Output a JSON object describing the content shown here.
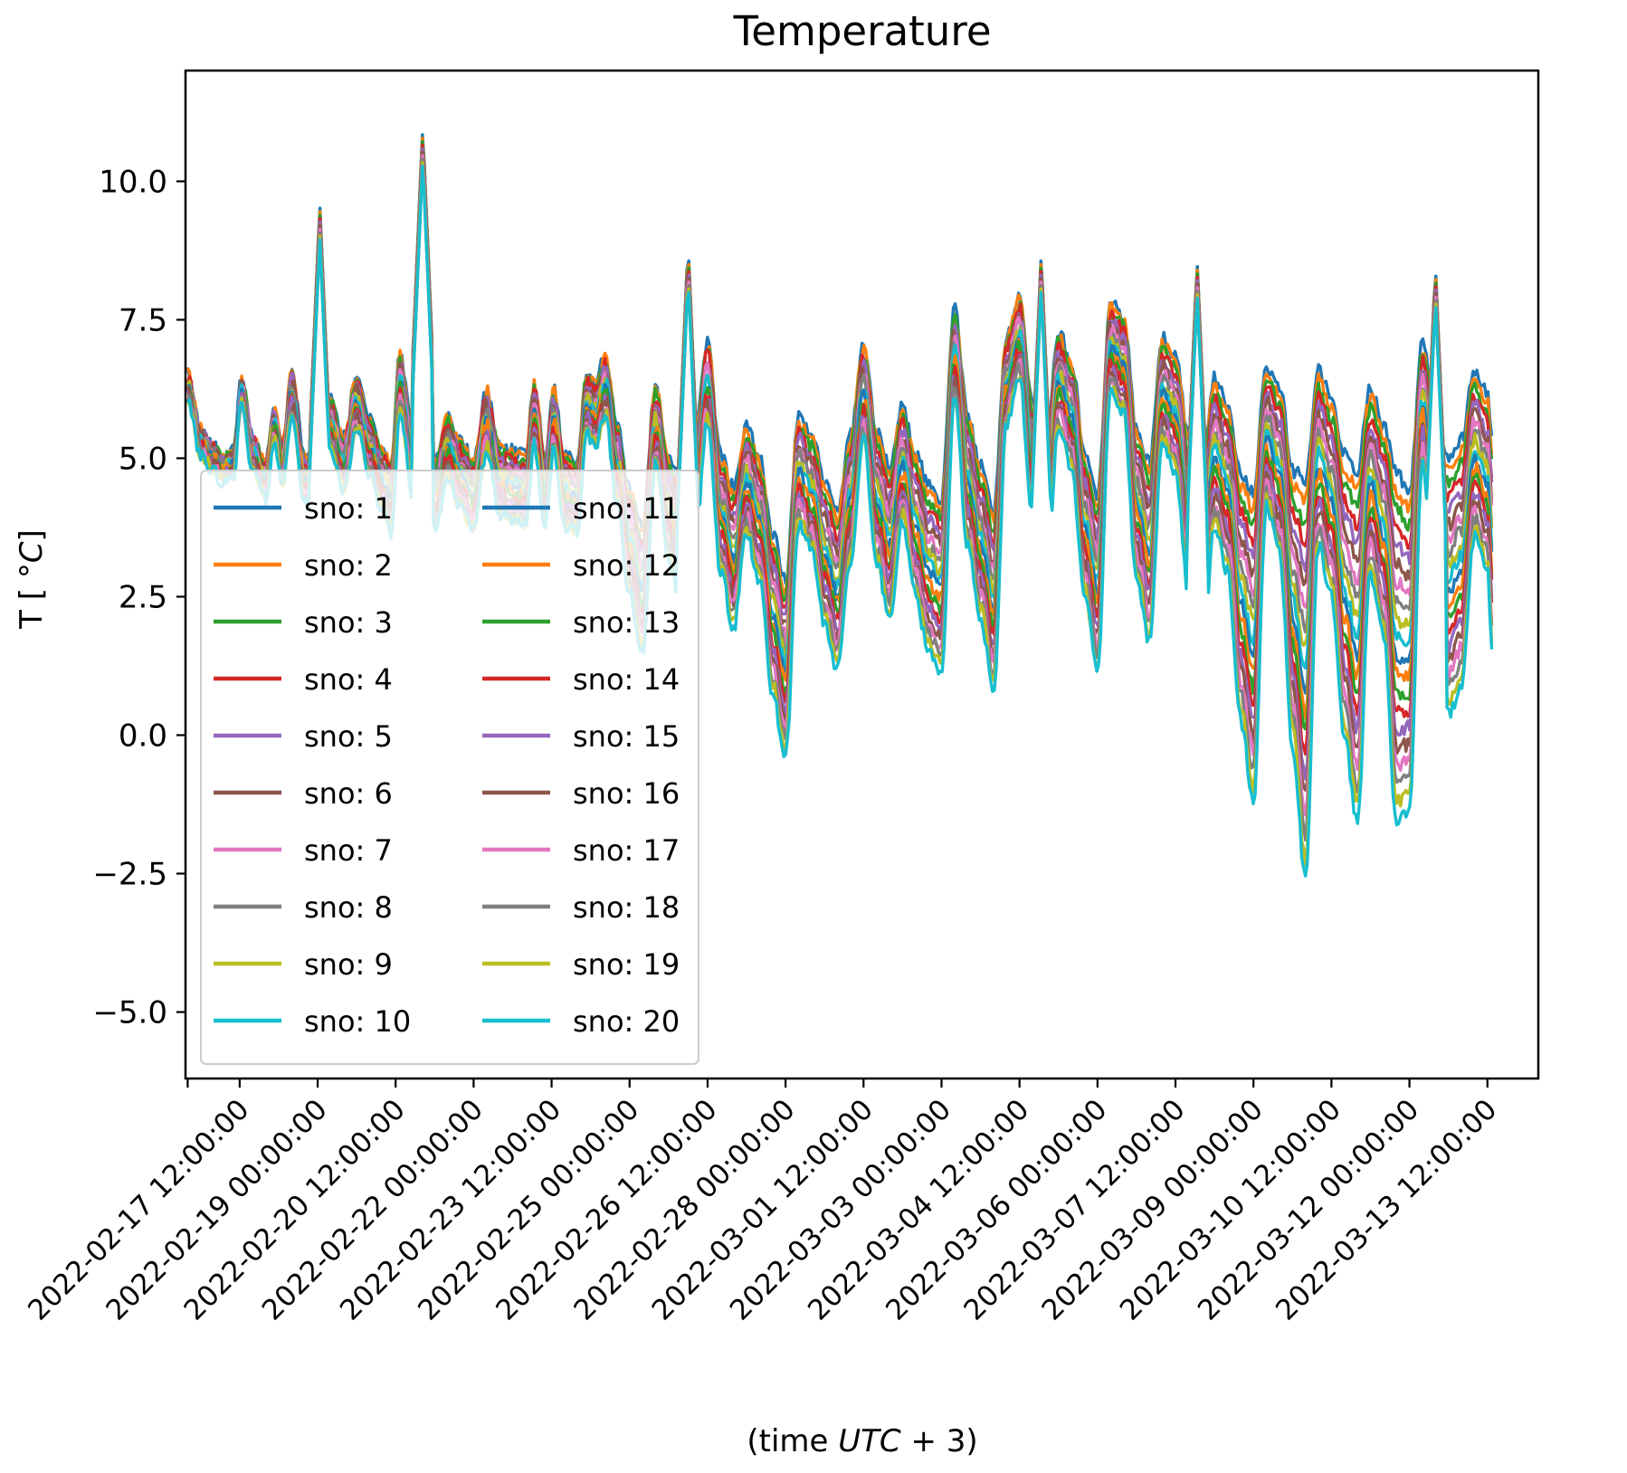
{
  "chart_data": {
    "type": "line",
    "title": "Temperature",
    "xlabel": "(time UTC + 3)",
    "xlabel_parts": {
      "pre": "(time ",
      "math": "UTC",
      "op": " + 3)"
    },
    "ylabel": "T [ °C]",
    "ylabel_parts": {
      "pre": "T [ °",
      "math": "C",
      "post": "]"
    },
    "ylim": [
      -6.2,
      12.0
    ],
    "xlim": [
      "2022-02-16T11:00:00",
      "2022-03-14T11:30:00"
    ],
    "yticks": [
      -5.0,
      -2.5,
      0.0,
      2.5,
      5.0,
      7.5,
      10.0
    ],
    "ytick_labels": [
      "−5.0",
      "−2.5",
      "0.0",
      "2.5",
      "5.0",
      "7.5",
      "10.0"
    ],
    "xticks": [
      {
        "t": "2022-02-16T12:00:00",
        "label": ""
      },
      {
        "t": "2022-02-17T12:00:00",
        "label": "2022-02-17 12:00:00"
      },
      {
        "t": "2022-02-19T00:00:00",
        "label": "2022-02-19 00:00:00"
      },
      {
        "t": "2022-02-20T12:00:00",
        "label": "2022-02-20 12:00:00"
      },
      {
        "t": "2022-02-22T00:00:00",
        "label": "2022-02-22 00:00:00"
      },
      {
        "t": "2022-02-23T12:00:00",
        "label": "2022-02-23 12:00:00"
      },
      {
        "t": "2022-02-25T00:00:00",
        "label": "2022-02-25 00:00:00"
      },
      {
        "t": "2022-02-26T12:00:00",
        "label": "2022-02-26 12:00:00"
      },
      {
        "t": "2022-02-28T00:00:00",
        "label": "2022-02-28 00:00:00"
      },
      {
        "t": "2022-03-01T12:00:00",
        "label": "2022-03-01 12:00:00"
      },
      {
        "t": "2022-03-03T00:00:00",
        "label": "2022-03-03 00:00:00"
      },
      {
        "t": "2022-03-04T12:00:00",
        "label": "2022-03-04 12:00:00"
      },
      {
        "t": "2022-03-06T00:00:00",
        "label": "2022-03-06 00:00:00"
      },
      {
        "t": "2022-03-07T12:00:00",
        "label": "2022-03-07 12:00:00"
      },
      {
        "t": "2022-03-09T00:00:00",
        "label": "2022-03-09 00:00:00"
      },
      {
        "t": "2022-03-10T12:00:00",
        "label": "2022-03-10 12:00:00"
      },
      {
        "t": "2022-03-12T00:00:00",
        "label": "2022-03-12 00:00:00"
      },
      {
        "t": "2022-03-13T12:00:00",
        "label": "2022-03-13 12:00:00"
      }
    ],
    "grid": false,
    "legend": {
      "position": "lower-left",
      "columns": 2
    },
    "colors": [
      "#1f77b4",
      "#ff7f0e",
      "#2ca02c",
      "#d62728",
      "#9467bd",
      "#8c564b",
      "#e377c2",
      "#7f7f7f",
      "#bcbd22",
      "#17becf"
    ],
    "series": [
      {
        "name": "sno: 1"
      },
      {
        "name": "sno: 2"
      },
      {
        "name": "sno: 3"
      },
      {
        "name": "sno: 4"
      },
      {
        "name": "sno: 5"
      },
      {
        "name": "sno: 6"
      },
      {
        "name": "sno: 7"
      },
      {
        "name": "sno: 8"
      },
      {
        "name": "sno: 9"
      },
      {
        "name": "sno: 10"
      },
      {
        "name": "sno: 11"
      },
      {
        "name": "sno: 12"
      },
      {
        "name": "sno: 13"
      },
      {
        "name": "sno: 14"
      },
      {
        "name": "sno: 15"
      },
      {
        "name": "sno: 16"
      },
      {
        "name": "sno: 17"
      },
      {
        "name": "sno: 18"
      },
      {
        "name": "sno: 19"
      },
      {
        "name": "sno: 20"
      }
    ],
    "envelope": {
      "t": [
        "2022-02-16T12:00:00",
        "2022-02-16T18:00:00",
        "2022-02-17T00:00:00",
        "2022-02-17T04:00:00",
        "2022-02-17T09:00:00",
        "2022-02-17T13:00:00",
        "2022-02-17T18:00:00",
        "2022-02-18T00:00:00",
        "2022-02-18T04:00:00",
        "2022-02-18T08:00:00",
        "2022-02-18T12:00:00",
        "2022-02-18T18:00:00",
        "2022-02-19T00:00:00",
        "2022-02-19T06:00:00",
        "2022-02-19T12:00:00",
        "2022-02-19T18:00:00",
        "2022-02-20T00:00:00",
        "2022-02-20T06:00:00",
        "2022-02-20T10:00:00",
        "2022-02-20T14:00:00",
        "2022-02-20T20:00:00",
        "2022-02-21T00:00:00",
        "2022-02-21T06:00:00",
        "2022-02-21T12:00:00",
        "2022-02-21T18:00:00",
        "2022-02-22T00:00:00",
        "2022-02-22T06:00:00",
        "2022-02-22T12:00:00",
        "2022-02-22T18:00:00",
        "2022-02-23T00:00:00",
        "2022-02-23T04:00:00",
        "2022-02-23T09:00:00",
        "2022-02-23T13:00:00",
        "2022-02-23T18:00:00",
        "2022-02-24T00:00:00",
        "2022-02-24T04:00:00",
        "2022-02-24T08:00:00",
        "2022-02-24T13:00:00",
        "2022-02-24T18:00:00",
        "2022-02-25T00:00:00",
        "2022-02-25T06:00:00",
        "2022-02-25T12:00:00",
        "2022-02-25T18:00:00",
        "2022-02-26T00:00:00",
        "2022-02-26T06:00:00",
        "2022-02-26T12:00:00",
        "2022-02-26T18:00:00",
        "2022-02-27T00:00:00",
        "2022-02-27T06:00:00",
        "2022-02-27T12:00:00",
        "2022-02-27T18:00:00",
        "2022-02-28T00:00:00",
        "2022-02-28T06:00:00",
        "2022-02-28T12:00:00",
        "2022-02-28T18:00:00",
        "2022-03-01T00:00:00",
        "2022-03-01T06:00:00",
        "2022-03-01T12:00:00",
        "2022-03-01T18:00:00",
        "2022-03-02T00:00:00",
        "2022-03-02T06:00:00",
        "2022-03-02T12:00:00",
        "2022-03-02T18:00:00",
        "2022-03-03T00:00:00",
        "2022-03-03T06:00:00",
        "2022-03-03T12:00:00",
        "2022-03-03T18:00:00",
        "2022-03-04T00:00:00",
        "2022-03-04T06:00:00",
        "2022-03-04T12:00:00",
        "2022-03-04T18:00:00",
        "2022-03-05T00:00:00",
        "2022-03-05T06:00:00",
        "2022-03-05T12:00:00",
        "2022-03-05T18:00:00",
        "2022-03-06T00:00:00",
        "2022-03-06T06:00:00",
        "2022-03-06T12:00:00",
        "2022-03-06T18:00:00",
        "2022-03-07T00:00:00",
        "2022-03-07T06:00:00",
        "2022-03-07T12:00:00",
        "2022-03-07T18:00:00",
        "2022-03-08T00:00:00",
        "2022-03-08T06:00:00",
        "2022-03-08T12:00:00",
        "2022-03-08T18:00:00",
        "2022-03-09T00:00:00",
        "2022-03-09T06:00:00",
        "2022-03-09T12:00:00",
        "2022-03-09T18:00:00",
        "2022-03-10T00:00:00",
        "2022-03-10T06:00:00",
        "2022-03-10T12:00:00",
        "2022-03-10T18:00:00",
        "2022-03-11T00:00:00",
        "2022-03-11T06:00:00",
        "2022-03-11T12:00:00",
        "2022-03-11T18:00:00",
        "2022-03-12T00:00:00",
        "2022-03-12T06:00:00",
        "2022-03-12T12:00:00",
        "2022-03-12T18:00:00",
        "2022-03-13T00:00:00",
        "2022-03-13T06:00:00",
        "2022-03-13T12:00:00",
        "2022-03-13T14:00:00"
      ],
      "base": [
        6.3,
        5.3,
        5.0,
        4.8,
        4.9,
        6.2,
        5.1,
        4.6,
        5.6,
        4.9,
        6.2,
        4.6,
        4.4,
        5.6,
        4.9,
        6.0,
        5.2,
        4.6,
        4.3,
        6.4,
        4.9,
        4.6,
        4.3,
        5.2,
        4.7,
        4.3,
        5.7,
        4.6,
        4.5,
        4.4,
        5.8,
        4.4,
        5.7,
        4.4,
        4.3,
        6.0,
        5.8,
        6.3,
        4.9,
        3.5,
        2.6,
        5.6,
        4.1,
        3.4,
        4.4,
        6.4,
        4.0,
        3.2,
        4.6,
        3.9,
        2.2,
        1.2,
        4.8,
        4.4,
        3.3,
        2.6,
        4.3,
        6.2,
        4.3,
        3.5,
        4.9,
        3.8,
        3.0,
        2.7,
        6.9,
        4.6,
        3.5,
        2.4,
        6.4,
        7.2,
        4.9,
        3.8,
        6.4,
        5.8,
        3.8,
        2.7,
        7.0,
        6.7,
        4.2,
        3.3,
        6.2,
        5.8,
        4.0,
        2.9,
        5.1,
        4.5,
        2.5,
        1.6,
        5.4,
        4.8,
        2.3,
        1.0,
        5.0,
        4.3,
        2.5,
        1.6,
        4.6,
        3.7,
        1.6,
        1.5,
        6.0,
        3.8,
        2.7,
        3.1,
        5.1,
        4.6,
        3.4
      ],
      "spread": [
        0.3,
        0.3,
        0.3,
        0.3,
        0.3,
        0.3,
        0.4,
        0.4,
        0.4,
        0.5,
        0.5,
        0.5,
        0.6,
        0.6,
        0.6,
        0.6,
        0.6,
        0.7,
        0.8,
        0.6,
        0.8,
        0.8,
        0.8,
        0.7,
        0.8,
        0.8,
        0.7,
        0.8,
        0.8,
        0.8,
        0.7,
        0.8,
        0.7,
        0.8,
        0.8,
        0.7,
        0.7,
        0.7,
        0.9,
        1.2,
        1.4,
        0.9,
        1.1,
        1.5,
        1.2,
        0.9,
        1.3,
        1.6,
        1.2,
        1.4,
        1.8,
        2.0,
        1.2,
        1.3,
        1.6,
        1.8,
        1.4,
        1.1,
        1.5,
        1.7,
        1.3,
        1.6,
        1.9,
        2.0,
        1.0,
        1.5,
        1.7,
        2.0,
        1.0,
        0.9,
        1.4,
        1.7,
        1.1,
        1.2,
        1.6,
        2.0,
        1.0,
        1.1,
        1.7,
        2.0,
        1.2,
        1.3,
        1.8,
        2.4,
        1.7,
        1.9,
        2.8,
        3.5,
        1.6,
        1.9,
        3.1,
        4.5,
        2.0,
        2.2,
        3.2,
        4.0,
        2.1,
        2.4,
        3.9,
        3.6,
        1.4,
        2.5,
        2.9,
        2.8,
        1.9,
        2.0,
        2.4
      ],
      "spikes": [
        {
          "t": "2022-02-19T01:00:00",
          "v": 9.6
        },
        {
          "t": "2022-02-21T00:30:00",
          "v": 11.0
        },
        {
          "t": "2022-02-26T03:00:00",
          "v": 8.9
        },
        {
          "t": "2022-03-04T22:00:00",
          "v": 8.7
        },
        {
          "t": "2022-03-07T22:00:00",
          "v": 8.6
        },
        {
          "t": "2022-03-12T12:00:00",
          "v": 8.5
        }
      ]
    }
  }
}
